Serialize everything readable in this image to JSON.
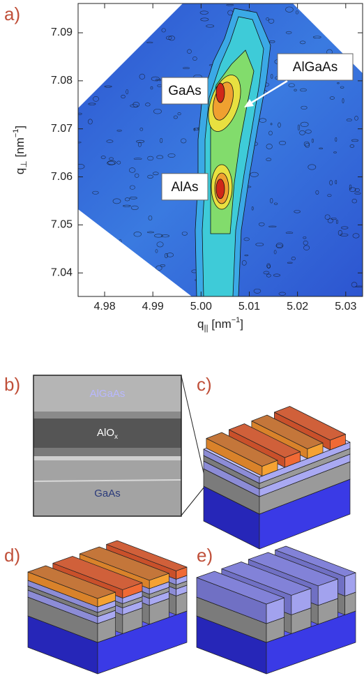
{
  "chart_data": {
    "type": "contour",
    "panel_label": "a)",
    "xlabel": {
      "main": "q",
      "sub": "||",
      "unit": " [nm",
      "sup": "−1",
      "end": "]"
    },
    "ylabel": {
      "main": "q",
      "sub": "⊥",
      "unit": " [nm",
      "sup": "−1",
      "end": "]"
    },
    "xlim": [
      4.9745,
      5.0335
    ],
    "ylim": [
      7.0351,
      7.0961
    ],
    "xticks": [
      4.98,
      4.99,
      {
        "value": 5,
        "label": "5.00"
      },
      5.01,
      5.02,
      5.03
    ],
    "yticks": [
      7.04,
      7.05,
      7.06,
      7.07,
      7.08,
      7.09
    ],
    "peaks": [
      {
        "label": "GaAs",
        "x": 5.004,
        "y": 7.0775
      },
      {
        "label": "AlAs",
        "x": 5.004,
        "y": 7.0575
      }
    ],
    "annotation": "AlGaAs"
  },
  "panels": {
    "b": {
      "label": "b)",
      "layers": [
        "AlGaAs",
        {
          "main": "AlO",
          "sub": "x"
        },
        "GaAs"
      ]
    },
    "c": {
      "label": "c)"
    },
    "d": {
      "label": "d)"
    },
    "e": {
      "label": "e)"
    }
  }
}
